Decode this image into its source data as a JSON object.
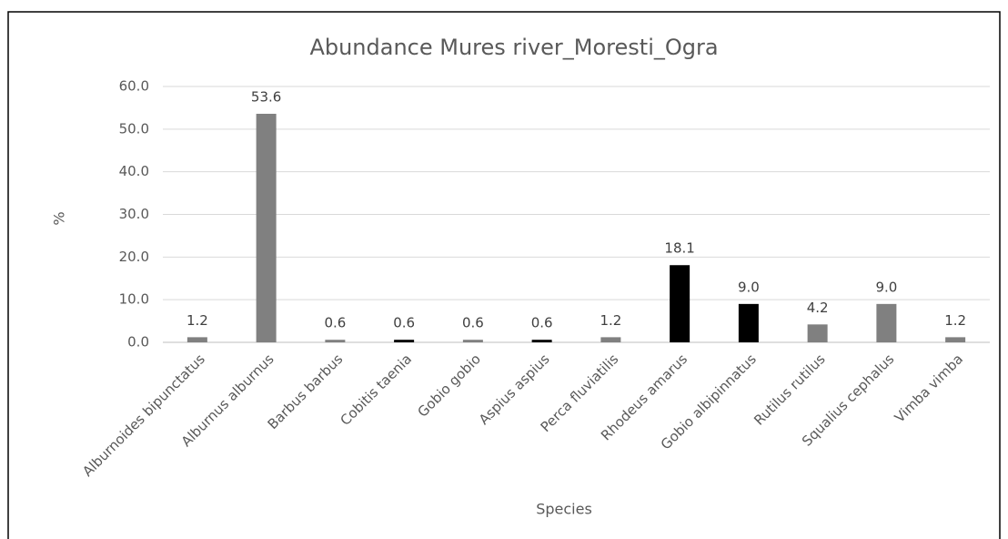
{
  "chart_data": {
    "type": "bar",
    "title": "Abundance Mures river_Moresti_Ogra",
    "x_label": "Species",
    "y_label": "%",
    "categories": [
      "Alburnoides bipunctatus",
      "Alburnus alburnus",
      "Barbus barbus",
      "Cobitis taenia",
      "Gobio gobio",
      "Aspius aspius",
      "Perca fluviatilis",
      "Rhodeus amarus",
      "Gobio albipinnatus",
      "Rutilus rutilus",
      "Squalius cephalus",
      "Vimba vimba"
    ],
    "values": [
      1.2,
      53.6,
      0.6,
      0.6,
      0.6,
      0.6,
      1.2,
      18.1,
      9,
      4.2,
      9,
      1.2
    ],
    "value_labels": [
      "1.2",
      "53.6",
      "0.6",
      "0.6",
      "0.6",
      "0.6",
      "1.2",
      "18.1",
      "9.0",
      "4.2",
      "9.0",
      "1.2"
    ],
    "colors": [
      "#808080",
      "#808080",
      "#808080",
      "#000000",
      "#808080",
      "#000000",
      "#808080",
      "#000000",
      "#000000",
      "#808080",
      "#808080",
      "#808080"
    ],
    "ylim": [
      0,
      60
    ],
    "yticks": [
      {
        "value": 0,
        "label": "0.0"
      },
      {
        "value": 10,
        "label": "10.0"
      },
      {
        "value": 20,
        "label": "20.0"
      },
      {
        "value": 30,
        "label": "30.0"
      },
      {
        "value": 40,
        "label": "40.0"
      },
      {
        "value": 50,
        "label": "50.0"
      },
      {
        "value": 60,
        "label": "60.0"
      }
    ],
    "grid": true
  }
}
